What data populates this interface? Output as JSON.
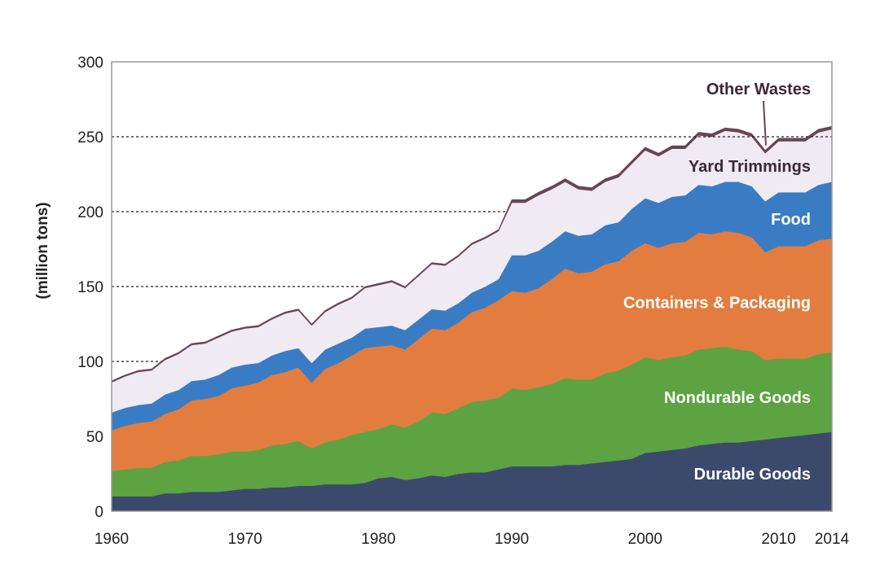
{
  "chart_data": {
    "type": "area",
    "stacked": true,
    "ylabel": "(million tons)",
    "xlabel": "",
    "xlim": [
      1960,
      2014
    ],
    "ylim": [
      0,
      300
    ],
    "x_ticks": [
      "1960",
      "1970",
      "1980",
      "1990",
      "2000",
      "2010",
      "2014"
    ],
    "y_ticks": [
      "0",
      "50",
      "100",
      "150",
      "200",
      "250",
      "300"
    ],
    "dashed_gridlines": [
      100,
      150,
      200,
      250
    ],
    "x": [
      1960,
      1961,
      1962,
      1963,
      1964,
      1965,
      1966,
      1967,
      1968,
      1969,
      1970,
      1971,
      1972,
      1973,
      1974,
      1975,
      1976,
      1977,
      1978,
      1979,
      1980,
      1981,
      1982,
      1983,
      1984,
      1985,
      1986,
      1987,
      1988,
      1989,
      1990,
      1991,
      1992,
      1993,
      1994,
      1995,
      1996,
      1997,
      1998,
      1999,
      2000,
      2001,
      2002,
      2003,
      2004,
      2005,
      2006,
      2007,
      2008,
      2009,
      2010,
      2011,
      2012,
      2013,
      2014
    ],
    "series": [
      {
        "name": "Durable Goods",
        "color": "#3b4a6b",
        "label_color": "#ffffff",
        "values": [
          10,
          10,
          10,
          10,
          12,
          12,
          13,
          13,
          13,
          14,
          15,
          15,
          16,
          16,
          17,
          17,
          18,
          18,
          18,
          19,
          22,
          23,
          21,
          22,
          24,
          23,
          25,
          26,
          26,
          28,
          30,
          30,
          30,
          30,
          31,
          31,
          32,
          33,
          34,
          35,
          39,
          40,
          41,
          42,
          44,
          45,
          46,
          46,
          47,
          48,
          49,
          50,
          51,
          52,
          53
        ]
      },
      {
        "name": "Nondurable Goods",
        "color": "#5ea342",
        "label_color": "#ffffff",
        "values": [
          17,
          18,
          19,
          19,
          21,
          22,
          24,
          24,
          25,
          26,
          25,
          26,
          28,
          29,
          30,
          25,
          28,
          30,
          33,
          34,
          33,
          35,
          35,
          38,
          42,
          42,
          44,
          47,
          48,
          48,
          52,
          51,
          53,
          55,
          58,
          57,
          56,
          59,
          60,
          63,
          64,
          61,
          62,
          62,
          64,
          64,
          64,
          62,
          60,
          53,
          53,
          52,
          51,
          53,
          53
        ]
      },
      {
        "name": "Containers & Packaging",
        "color": "#e27d3f",
        "label_color": "#ffffff",
        "values": [
          27,
          29,
          30,
          31,
          32,
          34,
          37,
          38,
          39,
          42,
          44,
          45,
          47,
          48,
          49,
          44,
          49,
          51,
          53,
          56,
          55,
          53,
          52,
          55,
          56,
          56,
          57,
          60,
          62,
          65,
          65,
          65,
          66,
          70,
          73,
          71,
          72,
          73,
          73,
          76,
          76,
          75,
          76,
          76,
          78,
          76,
          77,
          78,
          76,
          72,
          75,
          75,
          75,
          76,
          76
        ]
      },
      {
        "name": "Food",
        "color": "#3a7cc4",
        "label_color": "#ffffff",
        "values": [
          12,
          12,
          12,
          12,
          13,
          13,
          13,
          13,
          14,
          14,
          14,
          13,
          13,
          14,
          13,
          13,
          13,
          13,
          12,
          13,
          13,
          13,
          13,
          13,
          13,
          13,
          13,
          13,
          14,
          14,
          24,
          25,
          25,
          25,
          25,
          25,
          25,
          26,
          26,
          28,
          30,
          30,
          31,
          31,
          32,
          32,
          33,
          34,
          34,
          34,
          36,
          36,
          36,
          37,
          38
        ]
      },
      {
        "name": "Yard Trimmings",
        "color": "#f0ebf3",
        "label_color": "#3a2a36",
        "values": [
          20,
          21,
          22,
          22,
          23,
          24,
          24,
          24,
          25,
          24,
          24,
          24,
          24,
          25,
          25,
          25,
          25,
          26,
          26,
          27,
          28,
          29,
          28,
          29,
          30,
          30,
          31,
          32,
          32,
          32,
          35,
          35,
          37,
          35,
          33,
          31,
          29,
          29,
          30,
          30,
          32,
          31,
          32,
          31,
          33,
          33,
          34,
          33,
          33,
          32,
          34,
          34,
          34,
          35,
          35
        ]
      },
      {
        "name": "Other Wastes",
        "color": "#6b4454",
        "label_color": "#3a2a36",
        "values": [
          1,
          1,
          1,
          1,
          1,
          1,
          1,
          1,
          1,
          1,
          1,
          1,
          1,
          1,
          1,
          1,
          1,
          1,
          1,
          1,
          1,
          1,
          1,
          1,
          1,
          1,
          1,
          1,
          1,
          1,
          2,
          2,
          2,
          2,
          2,
          2,
          2,
          2,
          2,
          2,
          2,
          2,
          2,
          2,
          2,
          2,
          2,
          2,
          2,
          2,
          2,
          2,
          2,
          2,
          2
        ]
      }
    ],
    "frame_color": "#9a9a9a"
  }
}
